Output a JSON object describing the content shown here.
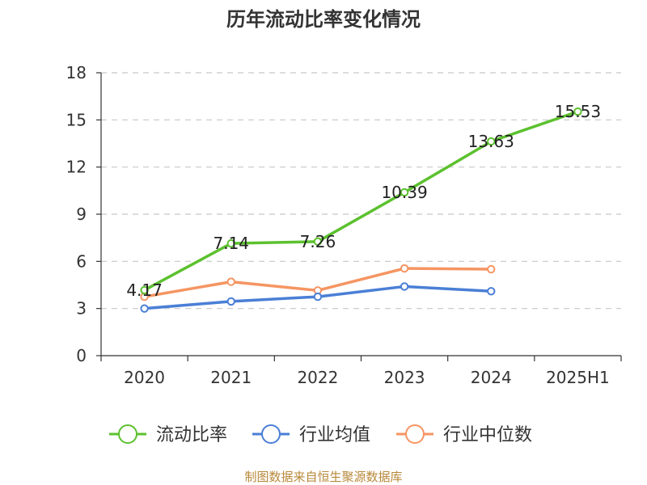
{
  "chart_data": {
    "type": "line",
    "title": "历年流动比率变化情况",
    "categories": [
      "2020",
      "2021",
      "2022",
      "2023",
      "2024",
      "2025H1"
    ],
    "yticks": [
      "0",
      "3",
      "6",
      "9",
      "12",
      "15",
      "18"
    ],
    "ylim": [
      0,
      18
    ],
    "grid": true,
    "legend_position": "bottom",
    "series": [
      {
        "name": "流动比率",
        "color": "#5cc12f",
        "values": [
          4.17,
          7.14,
          7.26,
          10.39,
          13.63,
          15.53
        ],
        "labels": [
          "4.17",
          "7.14",
          "7.26",
          "10.39",
          "13.63",
          "15.53"
        ]
      },
      {
        "name": "行业均值",
        "color": "#4a7fd6",
        "values": [
          3.0,
          3.45,
          3.75,
          4.4,
          4.1,
          null
        ]
      },
      {
        "name": "行业中位数",
        "color": "#f59562",
        "values": [
          3.75,
          4.7,
          4.15,
          5.55,
          5.5,
          null
        ]
      }
    ],
    "source": "制图数据来自恒生聚源数据库"
  }
}
